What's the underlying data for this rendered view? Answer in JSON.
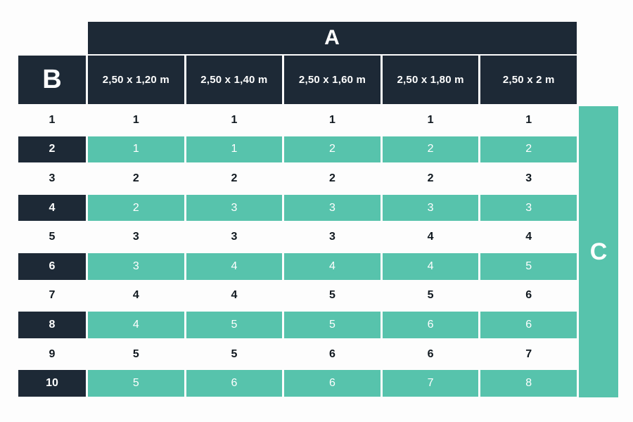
{
  "colors": {
    "navy": "#1d2936",
    "teal": "#57c3ac",
    "background": "#fdfdfd",
    "white_row_text": "#10181f",
    "teal_row_text": "#ffffff"
  },
  "table": {
    "a_label": "A",
    "b_label": "B",
    "c_label": "C",
    "column_headers": [
      "2,50 x 1,20 m",
      "2,50 x 1,40 m",
      "2,50 x 1,60 m",
      "2,50 x 1,80 m",
      "2,50 x 2 m"
    ],
    "rows": [
      {
        "label": "1",
        "values": [
          "1",
          "1",
          "1",
          "1",
          "1"
        ]
      },
      {
        "label": "2",
        "values": [
          "1",
          "1",
          "2",
          "2",
          "2"
        ]
      },
      {
        "label": "3",
        "values": [
          "2",
          "2",
          "2",
          "2",
          "3"
        ]
      },
      {
        "label": "4",
        "values": [
          "2",
          "3",
          "3",
          "3",
          "3"
        ]
      },
      {
        "label": "5",
        "values": [
          "3",
          "3",
          "3",
          "4",
          "4"
        ]
      },
      {
        "label": "6",
        "values": [
          "3",
          "4",
          "4",
          "4",
          "5"
        ]
      },
      {
        "label": "7",
        "values": [
          "4",
          "4",
          "5",
          "5",
          "6"
        ]
      },
      {
        "label": "8",
        "values": [
          "4",
          "5",
          "5",
          "6",
          "6"
        ]
      },
      {
        "label": "9",
        "values": [
          "5",
          "5",
          "6",
          "6",
          "7"
        ]
      },
      {
        "label": "10",
        "values": [
          "5",
          "6",
          "6",
          "7",
          "8"
        ]
      }
    ]
  },
  "chart_data": {
    "type": "table",
    "title": "",
    "column_group_label": "A",
    "row_group_label": "B",
    "side_label": "C",
    "columns": [
      "2,50 x 1,20 m",
      "2,50 x 1,40 m",
      "2,50 x 1,60 m",
      "2,50 x 1,80 m",
      "2,50 x 2 m"
    ],
    "row_labels": [
      "1",
      "2",
      "3",
      "4",
      "5",
      "6",
      "7",
      "8",
      "9",
      "10"
    ],
    "values": [
      [
        1,
        1,
        1,
        1,
        1
      ],
      [
        1,
        1,
        2,
        2,
        2
      ],
      [
        2,
        2,
        2,
        2,
        3
      ],
      [
        2,
        3,
        3,
        3,
        3
      ],
      [
        3,
        3,
        3,
        4,
        4
      ],
      [
        3,
        4,
        4,
        4,
        5
      ],
      [
        4,
        4,
        5,
        5,
        6
      ],
      [
        4,
        5,
        5,
        6,
        6
      ],
      [
        5,
        5,
        6,
        6,
        7
      ],
      [
        5,
        6,
        6,
        7,
        8
      ]
    ]
  }
}
